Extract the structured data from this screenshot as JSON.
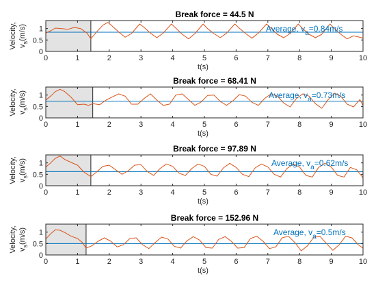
{
  "colors": {
    "average_line": "#0072BD",
    "velocity_line": "#D95319",
    "axes": "#262626",
    "shade_fill": "#e3e3e3",
    "annotation": "#0072BD"
  },
  "chart_data": [
    {
      "type": "line",
      "title": "Break force = 44.5 N",
      "xlabel": "t(s)",
      "ylabel_line1": "Velocity,",
      "ylabel_line2_main": "v",
      "ylabel_line2_sub": "s",
      "ylabel_line2_unit": "(m/s)",
      "xlim": [
        0,
        10
      ],
      "ylim": [
        0,
        1.35
      ],
      "xticks": [
        0,
        1,
        2,
        3,
        4,
        5,
        6,
        7,
        8,
        9,
        10
      ],
      "yticks": [
        0,
        0.5,
        1
      ],
      "ytick_labels": [
        "0",
        "0.5",
        "1"
      ],
      "grid": false,
      "shaded_region": [
        0,
        1.42
      ],
      "average": 0.84,
      "annotation": {
        "prefix": "Average, v",
        "sub": "a",
        "suffix": "=0.84m/s"
      },
      "series": [
        {
          "x": [
            0,
            0.15,
            0.3,
            0.5,
            0.7,
            0.9,
            1.1,
            1.3,
            1.42,
            1.6,
            1.8,
            1.96,
            2.1,
            2.3,
            2.5,
            2.7,
            2.96,
            3.1,
            3.3,
            3.5,
            3.7,
            3.96,
            4.1,
            4.3,
            4.5,
            4.7,
            4.96,
            5.1,
            5.3,
            5.5,
            5.7,
            5.96,
            6.1,
            6.3,
            6.5,
            6.7,
            6.96,
            7.1,
            7.3,
            7.5,
            7.7,
            7.96,
            8.1,
            8.3,
            8.5,
            8.7,
            8.96,
            9.1,
            9.3,
            9.5,
            9.7,
            9.96,
            10
          ],
          "y": [
            0.8,
            0.9,
            1.02,
            1.0,
            0.97,
            1.05,
            1.0,
            0.8,
            0.55,
            0.85,
            1.15,
            1.27,
            1.1,
            0.85,
            0.62,
            0.78,
            1.2,
            1.05,
            0.8,
            0.6,
            0.8,
            1.2,
            1.02,
            0.75,
            0.55,
            0.78,
            1.2,
            1.0,
            0.78,
            0.6,
            0.8,
            1.2,
            1.02,
            0.78,
            0.58,
            0.8,
            1.2,
            1.02,
            0.75,
            0.6,
            0.78,
            1.2,
            1.0,
            0.75,
            0.6,
            0.75,
            1.2,
            1.0,
            0.75,
            0.55,
            0.68,
            0.6,
            0.58
          ]
        }
      ]
    },
    {
      "type": "line",
      "title": "Break force = 68.41 N",
      "xlabel": "t(s)",
      "ylabel_line1": "Velocity,",
      "ylabel_line2_main": "v",
      "ylabel_line2_sub": "s",
      "ylabel_line2_unit": "(m/s)",
      "xlim": [
        0,
        10
      ],
      "ylim": [
        0,
        1.35
      ],
      "xticks": [
        0,
        1,
        2,
        3,
        4,
        5,
        6,
        7,
        8,
        9,
        10
      ],
      "yticks": [
        0,
        0.5,
        1
      ],
      "ytick_labels": [
        "0",
        "0.5",
        "1"
      ],
      "grid": false,
      "shaded_region": [
        0,
        1.48
      ],
      "average": 0.73,
      "annotation": {
        "prefix": "Average, v",
        "sub": "a",
        "suffix": "=0.73m/s"
      },
      "series": [
        {
          "x": [
            0,
            0.15,
            0.3,
            0.45,
            0.6,
            0.8,
            1.0,
            1.2,
            1.35,
            1.48,
            1.7,
            1.9,
            2.1,
            2.3,
            2.5,
            2.7,
            2.9,
            3.1,
            3.3,
            3.5,
            3.7,
            3.9,
            4.1,
            4.3,
            4.5,
            4.7,
            4.9,
            5.1,
            5.3,
            5.5,
            5.7,
            5.9,
            6.1,
            6.3,
            6.5,
            6.7,
            6.9,
            7.1,
            7.3,
            7.5,
            7.7,
            7.9,
            8.1,
            8.3,
            8.5,
            8.7,
            8.9,
            9.1,
            9.3,
            9.5,
            9.7,
            9.9,
            10
          ],
          "y": [
            0.78,
            0.95,
            1.15,
            1.25,
            1.15,
            0.9,
            0.58,
            0.6,
            0.55,
            0.62,
            0.58,
            0.78,
            0.92,
            1.05,
            0.95,
            0.6,
            0.6,
            0.85,
            1.05,
            0.78,
            0.55,
            0.6,
            1.0,
            1.05,
            0.8,
            0.55,
            0.7,
            0.98,
            1.0,
            0.72,
            0.55,
            0.75,
            1.02,
            0.95,
            0.68,
            0.55,
            0.85,
            1.05,
            0.95,
            0.65,
            0.48,
            0.85,
            1.05,
            0.95,
            0.62,
            0.42,
            0.8,
            1.08,
            0.95,
            0.6,
            0.48,
            0.8,
            0.55
          ]
        }
      ]
    },
    {
      "type": "line",
      "title": "Break force = 97.89 N",
      "xlabel": "t(s)",
      "ylabel_line1": "Velocity,",
      "ylabel_line2_main": "v",
      "ylabel_line2_sub": "s",
      "ylabel_line2_unit": "(m/s)",
      "xlim": [
        0,
        10
      ],
      "ylim": [
        0,
        1.35
      ],
      "xticks": [
        0,
        1,
        2,
        3,
        4,
        5,
        6,
        7,
        8,
        9,
        10
      ],
      "yticks": [
        0,
        0.5,
        1
      ],
      "ytick_labels": [
        "0",
        "0.5",
        "1"
      ],
      "grid": false,
      "shaded_region": [
        0,
        1.42
      ],
      "average": 0.62,
      "annotation": {
        "prefix": "Average, v",
        "sub": "a",
        "suffix": "=0.62m/s"
      },
      "series": [
        {
          "x": [
            0,
            0.15,
            0.3,
            0.45,
            0.6,
            0.8,
            1.0,
            1.2,
            1.42,
            1.6,
            1.8,
            2.0,
            2.2,
            2.4,
            2.6,
            2.8,
            3.0,
            3.2,
            3.4,
            3.6,
            3.8,
            4.0,
            4.2,
            4.4,
            4.6,
            4.8,
            5.0,
            5.2,
            5.4,
            5.6,
            5.8,
            6.0,
            6.2,
            6.4,
            6.6,
            6.8,
            7.0,
            7.2,
            7.4,
            7.6,
            7.8,
            8.0,
            8.2,
            8.4,
            8.6,
            8.8,
            9.0,
            9.2,
            9.4,
            9.6,
            9.8,
            10
          ],
          "y": [
            0.82,
            1.0,
            1.2,
            1.3,
            1.15,
            1.02,
            0.9,
            0.6,
            0.4,
            0.6,
            0.85,
            0.9,
            0.7,
            0.5,
            0.65,
            0.9,
            0.92,
            0.62,
            0.45,
            0.75,
            0.95,
            0.85,
            0.55,
            0.45,
            0.75,
            0.95,
            0.85,
            0.5,
            0.42,
            0.78,
            0.98,
            0.8,
            0.5,
            0.4,
            0.78,
            0.95,
            0.82,
            0.5,
            0.38,
            0.75,
            0.95,
            0.82,
            0.45,
            0.38,
            0.8,
            0.98,
            0.82,
            0.45,
            0.38,
            0.8,
            0.7,
            0.35
          ]
        }
      ]
    },
    {
      "type": "line",
      "title": "Break force = 152.96 N",
      "xlabel": "t(s)",
      "ylabel_line1": "Velocity,",
      "ylabel_line2_main": "v",
      "ylabel_line2_sub": "s",
      "ylabel_line2_unit": "(m/s)",
      "xlim": [
        0,
        10
      ],
      "ylim": [
        0,
        1.35
      ],
      "xticks": [
        0,
        1,
        2,
        3,
        4,
        5,
        6,
        7,
        8,
        9,
        10
      ],
      "yticks": [
        0,
        0.5,
        1
      ],
      "ytick_labels": [
        "0",
        "0.5",
        "1"
      ],
      "grid": false,
      "shaded_region": [
        0,
        1.27
      ],
      "average": 0.5,
      "annotation": {
        "prefix": "Average, v",
        "sub": "a",
        "suffix": "=0.5m/s"
      },
      "series": [
        {
          "x": [
            0,
            0.15,
            0.3,
            0.45,
            0.6,
            0.8,
            1.0,
            1.15,
            1.27,
            1.45,
            1.65,
            1.85,
            2.05,
            2.25,
            2.45,
            2.65,
            2.85,
            3.05,
            3.25,
            3.45,
            3.65,
            3.85,
            4.05,
            4.25,
            4.45,
            4.65,
            4.85,
            5.05,
            5.25,
            5.45,
            5.65,
            5.85,
            6.05,
            6.25,
            6.45,
            6.65,
            6.85,
            7.05,
            7.25,
            7.45,
            7.65,
            7.85,
            8.05,
            8.25,
            8.45,
            8.65,
            8.85,
            9.05,
            9.25,
            9.45,
            9.65,
            9.85,
            10
          ],
          "y": [
            0.7,
            0.92,
            1.1,
            1.08,
            0.98,
            0.82,
            0.72,
            0.55,
            0.3,
            0.4,
            0.6,
            0.75,
            0.6,
            0.35,
            0.45,
            0.72,
            0.75,
            0.45,
            0.28,
            0.55,
            0.78,
            0.7,
            0.38,
            0.3,
            0.62,
            0.8,
            0.65,
            0.32,
            0.3,
            0.68,
            0.8,
            0.6,
            0.3,
            0.32,
            0.72,
            0.82,
            0.6,
            0.28,
            0.35,
            0.75,
            0.82,
            0.55,
            0.18,
            0.4,
            0.78,
            0.8,
            0.5,
            0.2,
            0.45,
            0.82,
            0.75,
            0.45,
            0.3
          ]
        }
      ]
    }
  ]
}
